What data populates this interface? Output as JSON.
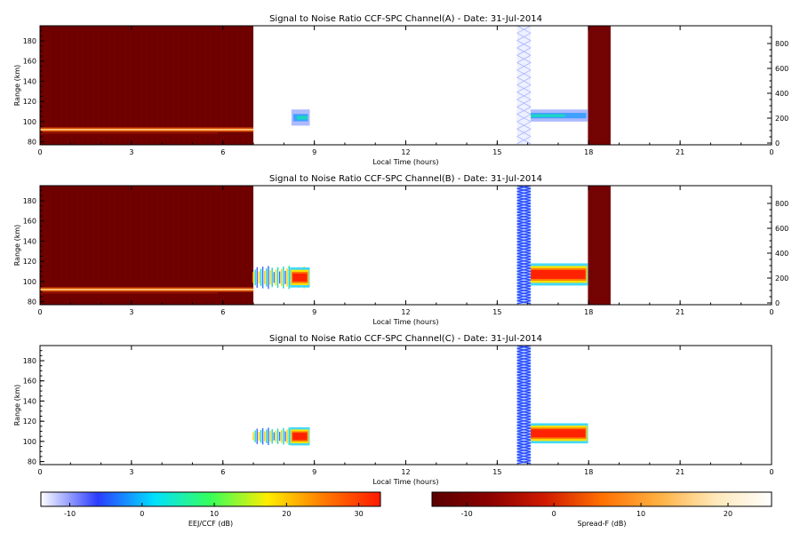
{
  "chart_data": [
    {
      "type": "heatmap",
      "title": "Signal to Noise Ratio CCF-SPC Channel(A) - Date: 31-Jul-2014",
      "xlabel": "Local Time (hours)",
      "ylabel": "Range (km)",
      "xlim": [
        0,
        24
      ],
      "ylim": [
        77,
        195
      ],
      "xticks": [
        "0",
        "3",
        "6",
        "9",
        "12",
        "15",
        "18",
        "21",
        "0"
      ],
      "yticks": [
        "80",
        "100",
        "120",
        "140",
        "160",
        "180"
      ],
      "right_yticks": [
        "0",
        "200",
        "400",
        "600",
        "800"
      ],
      "regions": [
        {
          "kind": "spreadf_bg",
          "t0": 0,
          "t1": 7.0,
          "r0": 77,
          "r1": 195
        },
        {
          "kind": "spreadf_line",
          "t0": 0,
          "t1": 7.0,
          "r": 92
        },
        {
          "kind": "spreadf_bg",
          "t0": 17.98,
          "t1": 18.72,
          "r0": 77,
          "r1": 195
        },
        {
          "kind": "eej_echo",
          "t0": 8.25,
          "t1": 8.85,
          "r0": 96,
          "r1": 112,
          "level": "low"
        },
        {
          "kind": "eej_echo",
          "t0": 15.65,
          "t1": 17.98,
          "r0": 100,
          "r1": 112,
          "level": "low"
        },
        {
          "kind": "eej_column",
          "t0": 15.65,
          "t1": 16.1,
          "r0": 78,
          "r1": 195,
          "level": "faint"
        }
      ]
    },
    {
      "type": "heatmap",
      "title": "Signal to Noise Ratio CCF-SPC Channel(B) - Date: 31-Jul-2014",
      "xlabel": "Local Time (hours)",
      "ylabel": "Range (km)",
      "xlim": [
        0,
        24
      ],
      "ylim": [
        77,
        195
      ],
      "xticks": [
        "0",
        "3",
        "6",
        "9",
        "12",
        "15",
        "18",
        "21",
        "0"
      ],
      "yticks": [
        "80",
        "100",
        "120",
        "140",
        "160",
        "180"
      ],
      "right_yticks": [
        "0",
        "200",
        "400",
        "600",
        "800"
      ],
      "regions": [
        {
          "kind": "spreadf_bg",
          "t0": 0,
          "t1": 7.0,
          "r0": 77,
          "r1": 195
        },
        {
          "kind": "spreadf_line",
          "t0": 0,
          "t1": 7.0,
          "r": 92
        },
        {
          "kind": "spreadf_bg",
          "t0": 17.98,
          "t1": 18.72,
          "r0": 77,
          "r1": 195
        },
        {
          "kind": "eej_echo",
          "t0": 7.0,
          "t1": 8.85,
          "r0": 92,
          "r1": 116,
          "level": "mid"
        },
        {
          "kind": "eej_echo",
          "t0": 8.2,
          "t1": 8.85,
          "r0": 94,
          "r1": 114,
          "level": "high"
        },
        {
          "kind": "eej_echo",
          "t0": 15.65,
          "t1": 17.98,
          "r0": 96,
          "r1": 118,
          "level": "high"
        },
        {
          "kind": "eej_column",
          "t0": 15.65,
          "t1": 16.1,
          "r0": 78,
          "r1": 195,
          "level": "strong"
        }
      ]
    },
    {
      "type": "heatmap",
      "title": "Signal to Noise Ratio CCF-SPC Channel(C) - Date: 31-Jul-2014",
      "xlabel": "Local Time (hours)",
      "ylabel": "Range (km)",
      "xlim": [
        0,
        24
      ],
      "ylim": [
        77,
        195
      ],
      "xticks": [
        "0",
        "3",
        "6",
        "9",
        "12",
        "15",
        "18",
        "21",
        "0"
      ],
      "yticks": [
        "80",
        "100",
        "120",
        "140",
        "160",
        "180"
      ],
      "right_yticks": [],
      "regions": [
        {
          "kind": "eej_echo",
          "t0": 7.0,
          "t1": 8.85,
          "r0": 96,
          "r1": 114,
          "level": "mid"
        },
        {
          "kind": "eej_echo",
          "t0": 8.2,
          "t1": 8.85,
          "r0": 96,
          "r1": 114,
          "level": "high"
        },
        {
          "kind": "eej_echo",
          "t0": 15.65,
          "t1": 17.98,
          "r0": 98,
          "r1": 118,
          "level": "high"
        },
        {
          "kind": "eej_column",
          "t0": 15.65,
          "t1": 16.1,
          "r0": 78,
          "r1": 195,
          "level": "strong"
        }
      ]
    }
  ],
  "colorbars": [
    {
      "label": "EEJ/CCF (dB)",
      "ticks": [
        "-10",
        "0",
        "10",
        "20",
        "30"
      ],
      "values": [
        -10,
        0,
        10,
        20,
        30
      ],
      "range": [
        -14,
        33
      ],
      "colors": [
        "#ffffff",
        "#2b3cff",
        "#00e0ff",
        "#37ff5a",
        "#ffee00",
        "#ff7a00",
        "#ff1a00"
      ]
    },
    {
      "label": "Spread-F (dB)",
      "ticks": [
        "-10",
        "0",
        "10",
        "20"
      ],
      "values": [
        -10,
        0,
        10,
        20
      ],
      "range": [
        -14,
        25
      ],
      "colors": [
        "#5a0000",
        "#8b0000",
        "#d01a00",
        "#ff7000",
        "#ffb040",
        "#ffe8b8",
        "#ffffff"
      ]
    }
  ],
  "colors": {
    "spreadf_bg": "#6e0000",
    "spreadf_line": "#ffcf80",
    "low_echo": "#3fa0ff",
    "mid_echo": "#1ad7c0",
    "high_echo": "#ff2200",
    "column": "#2a4dff"
  }
}
